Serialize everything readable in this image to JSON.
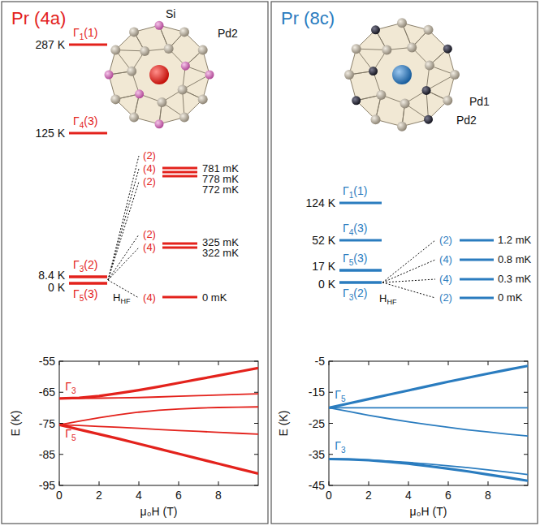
{
  "panels": [
    {
      "title": "Pr (4a)",
      "color": "#e3221c",
      "atoms": [
        "Si",
        "Pd2"
      ],
      "levels": [
        {
          "label": "287 K",
          "state": "Γ1(1)"
        },
        {
          "label": "125 K",
          "state": "Γ4(3)"
        },
        {
          "label": "8.4 K",
          "state": "Γ3(2)"
        },
        {
          "label": "0 K",
          "state": "Γ5(3)"
        }
      ],
      "hyperfine_field": {
        "symbol": "H",
        "subscript": "HF"
      },
      "hyperfine": [
        {
          "degeneracy": "(2)",
          "label": "781 mK"
        },
        {
          "degeneracy": "(4)",
          "label": "778 mK"
        },
        {
          "degeneracy": "(2)",
          "label": "772 mK"
        },
        {
          "degeneracy": "(2)",
          "label": "325 mK"
        },
        {
          "degeneracy": "(4)",
          "label": "322 mK"
        },
        {
          "degeneracy": "(4)",
          "label": "0 mK"
        }
      ]
    },
    {
      "title": "Pr (8c)",
      "color": "#2a7cbf",
      "atoms": [
        "Pd1",
        "Pd2"
      ],
      "levels": [
        {
          "label": "124 K",
          "state": "Γ1(1)"
        },
        {
          "label": "52 K",
          "state": "Γ4(3)"
        },
        {
          "label": "17 K",
          "state": "Γ5(3)"
        },
        {
          "label": "0 K",
          "state": "Γ3(2)"
        }
      ],
      "hyperfine_field": {
        "symbol": "H",
        "subscript": "HF"
      },
      "hyperfine": [
        {
          "degeneracy": "(2)",
          "label": "1.2 mK"
        },
        {
          "degeneracy": "(4)",
          "label": "0.8 mK"
        },
        {
          "degeneracy": "(4)",
          "label": "0.3 mK"
        },
        {
          "degeneracy": "(2)",
          "label": "0 mK"
        }
      ]
    }
  ],
  "chart_data": [
    {
      "type": "line",
      "x_label": "μ₀H (T)",
      "y_label": "E (K)",
      "x": [
        0,
        1,
        2,
        3,
        4,
        5,
        6,
        7,
        8,
        9,
        10
      ],
      "xlim": [
        0,
        10
      ],
      "xticks": [
        0,
        2,
        4,
        6,
        8
      ],
      "ylim": [
        -95,
        -55
      ],
      "yticks": [
        -95,
        -85,
        -75,
        -65,
        -55
      ],
      "grid": false,
      "series": [
        {
          "color": "#e3221c",
          "line_style": "bold",
          "values": [
            -75.5,
            -77.0,
            -78.5,
            -80.0,
            -81.6,
            -83.2,
            -84.8,
            -86.4,
            -88.0,
            -89.6,
            -91.2
          ]
        },
        {
          "color": "#e3221c",
          "line_style": "solid",
          "values": [
            -75.5,
            -75.7,
            -76.0,
            -76.3,
            -76.6,
            -77.0,
            -77.3,
            -77.6,
            -77.9,
            -78.2,
            -78.5
          ]
        },
        {
          "color": "#e3221c",
          "line_style": "solid",
          "values": [
            -75.5,
            -74.3,
            -73.2,
            -72.2,
            -71.4,
            -70.8,
            -70.4,
            -70.1,
            -69.9,
            -69.8,
            -69.7
          ]
        },
        {
          "color": "#e3221c",
          "line_style": "solid",
          "values": [
            -67.0,
            -67.0,
            -66.9,
            -66.8,
            -66.7,
            -66.5,
            -66.3,
            -66.1,
            -65.9,
            -65.7,
            -65.5
          ]
        },
        {
          "color": "#e3221c",
          "line_style": "bold",
          "values": [
            -67.0,
            -66.8,
            -66.2,
            -65.3,
            -64.3,
            -63.2,
            -62.0,
            -60.8,
            -59.6,
            -58.4,
            -57.2
          ]
        }
      ],
      "annotations": [
        {
          "text": "Γ5",
          "x": 0.3,
          "y": -79.5,
          "color": "#e3221c"
        },
        {
          "text": "Γ3",
          "x": 0.3,
          "y": -64.5,
          "color": "#e3221c"
        }
      ]
    },
    {
      "type": "line",
      "x_label": "μ₀H (T)",
      "y_label": "E (K)",
      "x": [
        0,
        1,
        2,
        3,
        4,
        5,
        6,
        7,
        8,
        9,
        10
      ],
      "xlim": [
        0,
        10
      ],
      "xticks": [
        0,
        2,
        4,
        6,
        8
      ],
      "ylim": [
        -45,
        -5
      ],
      "yticks": [
        -45,
        -35,
        -25,
        -15,
        -5
      ],
      "grid": false,
      "series": [
        {
          "color": "#2a7cbf",
          "line_style": "bold",
          "values": [
            -20.0,
            -18.6,
            -17.2,
            -15.8,
            -14.4,
            -13.0,
            -11.6,
            -10.3,
            -9.0,
            -7.7,
            -6.5
          ]
        },
        {
          "color": "#2a7cbf",
          "line_style": "solid",
          "values": [
            -20.0,
            -20.0,
            -20.0,
            -20.0,
            -20.0,
            -20.0,
            -20.0,
            -20.0,
            -20.0,
            -20.0,
            -20.0
          ]
        },
        {
          "color": "#2a7cbf",
          "line_style": "solid",
          "values": [
            -20.0,
            -21.2,
            -22.4,
            -23.5,
            -24.5,
            -25.4,
            -26.3,
            -27.1,
            -27.8,
            -28.5,
            -29.1
          ]
        },
        {
          "color": "#2a7cbf",
          "line_style": "solid",
          "values": [
            -36.5,
            -36.6,
            -36.8,
            -37.2,
            -37.6,
            -38.1,
            -38.7,
            -39.3,
            -40.0,
            -40.7,
            -41.5
          ]
        },
        {
          "color": "#2a7cbf",
          "line_style": "bold",
          "values": [
            -36.5,
            -36.6,
            -36.9,
            -37.4,
            -38.0,
            -38.8,
            -39.6,
            -40.5,
            -41.5,
            -42.5,
            -43.5
          ]
        }
      ],
      "annotations": [
        {
          "text": "Γ5",
          "x": 0.3,
          "y": -17.0,
          "color": "#2a7cbf"
        },
        {
          "text": "Γ3",
          "x": 0.3,
          "y": -33.5,
          "color": "#2a7cbf"
        }
      ]
    }
  ]
}
